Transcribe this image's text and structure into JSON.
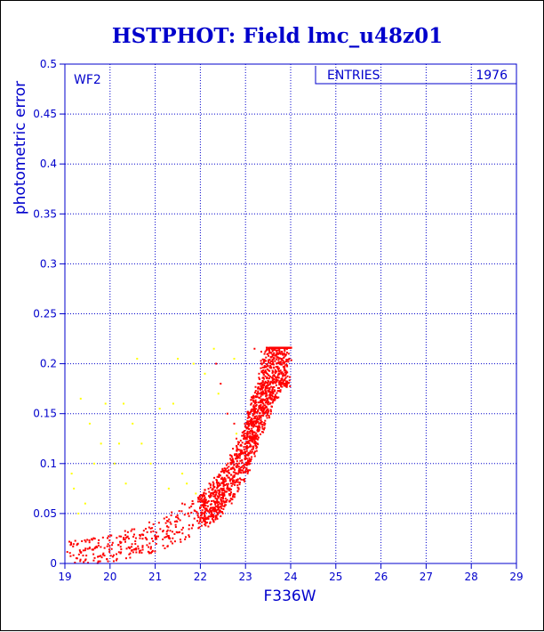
{
  "chart_data": {
    "type": "scatter",
    "title": "HSTPHOT: Field lmc_u48z01",
    "xlabel": "F336W",
    "ylabel": "photometric error",
    "xlim": [
      19,
      29
    ],
    "ylim": [
      0,
      0.5
    ],
    "xticks": [
      19,
      20,
      21,
      22,
      23,
      24,
      25,
      26,
      27,
      28,
      29
    ],
    "yticks": [
      0,
      0.05,
      0.1,
      0.15,
      0.2,
      0.25,
      0.3,
      0.35,
      0.4,
      0.45,
      0.5
    ],
    "grid": true,
    "panel_label": "WF2",
    "stats": {
      "label": "ENTRIES",
      "value": "1976"
    },
    "colors": {
      "title": "#0000cc",
      "axes": "#0000cc",
      "grid": "#0000cc",
      "good": "#ff0000",
      "outlier": "#ffff00"
    },
    "series": [
      {
        "color": "#ff0000",
        "trend": [
          [
            19.0,
            0.009
          ],
          [
            19.5,
            0.011
          ],
          [
            20.0,
            0.015
          ],
          [
            20.5,
            0.02
          ],
          [
            21.0,
            0.027
          ],
          [
            21.5,
            0.037
          ],
          [
            22.0,
            0.05
          ],
          [
            22.3,
            0.062
          ],
          [
            22.6,
            0.078
          ],
          [
            22.8,
            0.093
          ],
          [
            23.0,
            0.113
          ],
          [
            23.2,
            0.14
          ],
          [
            23.4,
            0.17
          ],
          [
            23.6,
            0.195
          ],
          [
            23.8,
            0.213
          ],
          [
            24.0,
            0.216
          ]
        ],
        "x": [
          23.2,
          23.35,
          23.5,
          23.65,
          23.8,
          23.95,
          23.3,
          23.55,
          23.75,
          23.9,
          23.25,
          23.6,
          23.85,
          22.35,
          22.45,
          22.6,
          22.75,
          22.8,
          22.95,
          23.1,
          22.2,
          21.6,
          21.2,
          20.9,
          20.3,
          19.7
        ],
        "y": [
          0.215,
          0.212,
          0.21,
          0.208,
          0.205,
          0.202,
          0.19,
          0.198,
          0.214,
          0.209,
          0.17,
          0.185,
          0.2,
          0.2,
          0.18,
          0.15,
          0.14,
          0.125,
          0.11,
          0.13,
          0.08,
          0.06,
          0.045,
          0.035,
          0.024,
          0.017
        ]
      },
      {
        "color": "#ffff00",
        "x": [
          19.35,
          19.55,
          19.8,
          19.2,
          19.9,
          20.1,
          20.6,
          20.3,
          20.5,
          20.7,
          21.5,
          21.6,
          21.7,
          21.85,
          22.3,
          22.4,
          22.75,
          22.8,
          21.1,
          20.9,
          21.3,
          21.9,
          19.15,
          19.45,
          19.65,
          20.2,
          21.4,
          22.1,
          19.3,
          20.35
        ],
        "y": [
          0.165,
          0.14,
          0.12,
          0.075,
          0.16,
          0.1,
          0.205,
          0.16,
          0.14,
          0.12,
          0.205,
          0.09,
          0.08,
          0.2,
          0.215,
          0.17,
          0.205,
          0.13,
          0.155,
          0.1,
          0.075,
          0.07,
          0.09,
          0.06,
          0.1,
          0.12,
          0.16,
          0.19,
          0.05,
          0.08
        ]
      }
    ]
  }
}
